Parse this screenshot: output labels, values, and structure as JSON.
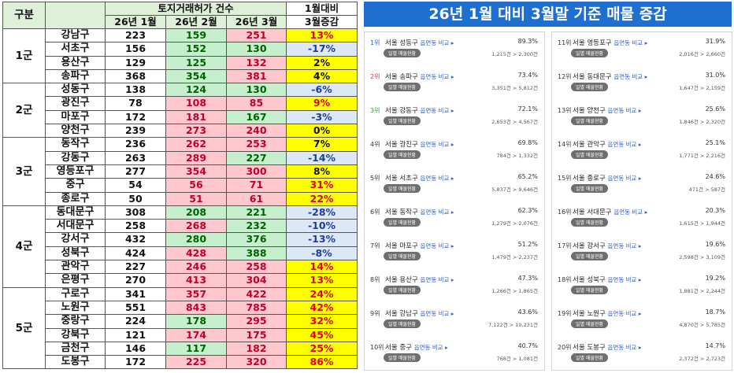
{
  "table": {
    "header": {
      "group": "구분",
      "permits_title": "토지거래허가 건수",
      "jan": "26년 1월",
      "feb": "26년 2월",
      "mar": "26년 3월",
      "change_line1": "1월대비",
      "change_line2": "3월증감"
    },
    "groups": [
      {
        "label": "1군",
        "rows": [
          {
            "name": "강남구",
            "jan": "223",
            "feb": "159",
            "mar": "251",
            "chg": "13%"
          },
          {
            "name": "서초구",
            "jan": "156",
            "feb": "152",
            "mar": "130",
            "chg": "-17%"
          },
          {
            "name": "용산구",
            "jan": "129",
            "feb": "125",
            "mar": "132",
            "chg": "2%"
          },
          {
            "name": "송파구",
            "jan": "368",
            "feb": "354",
            "mar": "381",
            "chg": "4%"
          }
        ]
      },
      {
        "label": "2군",
        "rows": [
          {
            "name": "성동구",
            "jan": "138",
            "feb": "124",
            "mar": "130",
            "chg": "-6%"
          },
          {
            "name": "광진구",
            "jan": "78",
            "feb": "108",
            "mar": "85",
            "chg": "9%"
          },
          {
            "name": "마포구",
            "jan": "172",
            "feb": "181",
            "mar": "167",
            "chg": "-3%"
          },
          {
            "name": "양천구",
            "jan": "239",
            "feb": "273",
            "mar": "240",
            "chg": "0%"
          }
        ]
      },
      {
        "label": "3군",
        "rows": [
          {
            "name": "동작구",
            "jan": "236",
            "feb": "262",
            "mar": "253",
            "chg": "7%"
          },
          {
            "name": "강동구",
            "jan": "263",
            "feb": "289",
            "mar": "227",
            "chg": "-14%"
          },
          {
            "name": "영등포구",
            "jan": "277",
            "feb": "354",
            "mar": "300",
            "chg": "8%"
          },
          {
            "name": "중구",
            "jan": "54",
            "feb": "56",
            "mar": "71",
            "chg": "31%"
          },
          {
            "name": "종로구",
            "jan": "50",
            "feb": "51",
            "mar": "61",
            "chg": "22%"
          }
        ]
      },
      {
        "label": "4군",
        "rows": [
          {
            "name": "동대문구",
            "jan": "308",
            "feb": "208",
            "mar": "221",
            "chg": "-28%"
          },
          {
            "name": "서대문구",
            "jan": "258",
            "feb": "268",
            "mar": "232",
            "chg": "-10%"
          },
          {
            "name": "강서구",
            "jan": "432",
            "feb": "280",
            "mar": "376",
            "chg": "-13%"
          },
          {
            "name": "성북구",
            "jan": "424",
            "feb": "428",
            "mar": "388",
            "chg": "-8%"
          },
          {
            "name": "관악구",
            "jan": "227",
            "feb": "246",
            "mar": "258",
            "chg": "14%"
          },
          {
            "name": "은평구",
            "jan": "270",
            "feb": "413",
            "mar": "304",
            "chg": "13%"
          }
        ]
      },
      {
        "label": "5군",
        "rows": [
          {
            "name": "구로구",
            "jan": "341",
            "feb": "357",
            "mar": "422",
            "chg": "24%"
          },
          {
            "name": "노원구",
            "jan": "551",
            "feb": "843",
            "mar": "785",
            "chg": "42%"
          },
          {
            "name": "중랑구",
            "jan": "224",
            "feb": "178",
            "mar": "295",
            "chg": "32%"
          },
          {
            "name": "강북구",
            "jan": "121",
            "feb": "174",
            "mar": "175",
            "chg": "45%"
          },
          {
            "name": "금천구",
            "jan": "146",
            "feb": "117",
            "mar": "182",
            "chg": "25%"
          },
          {
            "name": "도봉구",
            "jan": "172",
            "feb": "225",
            "mar": "320",
            "chg": "86%"
          }
        ]
      }
    ]
  },
  "ranking": {
    "title": "26년 1월 대비 3월말 기준 매물 증감",
    "compare_label": "읍면동 비교 ▸",
    "pill_label": "일별 매물현황",
    "items": [
      {
        "rank": "1위",
        "name": "서울 성동구",
        "pct": "89.3%",
        "counts": "1,215건 > 2,300건"
      },
      {
        "rank": "2위",
        "name": "서울 송파구",
        "pct": "73.4%",
        "counts": "3,351건 > 5,812건"
      },
      {
        "rank": "3위",
        "name": "서울 강동구",
        "pct": "72.1%",
        "counts": "2,653건 > 4,567건"
      },
      {
        "rank": "4위",
        "name": "서울 광진구",
        "pct": "69.8%",
        "counts": "784건 > 1,332건"
      },
      {
        "rank": "5위",
        "name": "서울 서초구",
        "pct": "65.2%",
        "counts": "5,837건 > 9,646건"
      },
      {
        "rank": "6위",
        "name": "서울 동작구",
        "pct": "62.3%",
        "counts": "1,279건 > 2,076건"
      },
      {
        "rank": "7위",
        "name": "서울 마포구",
        "pct": "51.2%",
        "counts": "1,479건 > 2,237건"
      },
      {
        "rank": "8위",
        "name": "서울 용산구",
        "pct": "47.3%",
        "counts": "1,266건 > 1,865건"
      },
      {
        "rank": "9위",
        "name": "서울 강남구",
        "pct": "43.6%",
        "counts": "7,122건 > 10,231건"
      },
      {
        "rank": "10위",
        "name": "서울 중구",
        "pct": "40.7%",
        "counts": "768건 > 1,081건"
      },
      {
        "rank": "11위",
        "name": "서울 영등포구",
        "pct": "31.9%",
        "counts": "2,016건 > 2,660건"
      },
      {
        "rank": "12위",
        "name": "서울 동대문구",
        "pct": "31.0%",
        "counts": "1,647건 > 2,159건"
      },
      {
        "rank": "13위",
        "name": "서울 양천구",
        "pct": "25.6%",
        "counts": "1,846건 > 2,320건"
      },
      {
        "rank": "14위",
        "name": "서울 관악구",
        "pct": "25.1%",
        "counts": "1,771건 > 2,216건"
      },
      {
        "rank": "15위",
        "name": "서울 종로구",
        "pct": "24.6%",
        "counts": "471건 > 587건"
      },
      {
        "rank": "16위",
        "name": "서울 서대문구",
        "pct": "20.3%",
        "counts": "1,615건 > 1,944건"
      },
      {
        "rank": "17위",
        "name": "서울 강서구",
        "pct": "19.6%",
        "counts": "2,598건 > 3,109건"
      },
      {
        "rank": "18위",
        "name": "서울 성북구",
        "pct": "19.2%",
        "counts": "1,881건 > 2,244건"
      },
      {
        "rank": "19위",
        "name": "서울 노원구",
        "pct": "18.7%",
        "counts": "4,870건 > 5,785건"
      },
      {
        "rank": "20위",
        "name": "서울 도봉구",
        "pct": "14.7%",
        "counts": "2,372건 > 2,723건"
      }
    ]
  }
}
